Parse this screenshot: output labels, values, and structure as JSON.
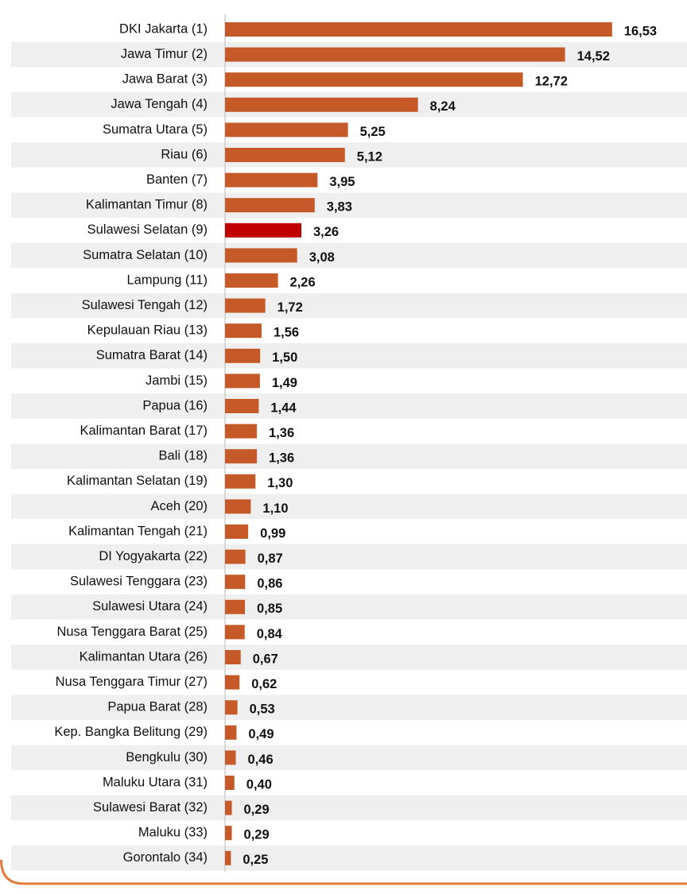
{
  "chart_data": {
    "type": "barh",
    "categories": [
      "DKI Jakarta (1)",
      "Jawa Timur (2)",
      "Jawa Barat (3)",
      "Jawa Tengah (4)",
      "Sumatra Utara (5)",
      "Riau (6)",
      "Banten (7)",
      "Kalimantan Timur (8)",
      "Sulawesi Selatan (9)",
      "Sumatra Selatan (10)",
      "Lampung (11)",
      "Sulawesi Tengah (12)",
      "Kepulauan Riau (13)",
      "Sumatra Barat (14)",
      "Jambi (15)",
      "Papua (16)",
      "Kalimantan Barat (17)",
      "Bali (18)",
      "Kalimantan Selatan (19)",
      "Aceh (20)",
      "Kalimantan Tengah (21)",
      "DI Yogyakarta (22)",
      "Sulawesi Tenggara (23)",
      "Sulawesi Utara (24)",
      "Nusa Tenggara Barat (25)",
      "Kalimantan Utara (26)",
      "Nusa Tenggara Timur (27)",
      "Papua Barat (28)",
      "Kep. Bangka Belitung (29)",
      "Bengkulu (30)",
      "Maluku Utara (31)",
      "Sulawesi Barat (32)",
      "Maluku (33)",
      "Gorontalo (34)"
    ],
    "values": [
      16.53,
      14.52,
      12.72,
      8.24,
      5.25,
      5.12,
      3.95,
      3.83,
      3.26,
      3.08,
      2.26,
      1.72,
      1.56,
      1.5,
      1.49,
      1.44,
      1.36,
      1.36,
      1.3,
      1.1,
      0.99,
      0.87,
      0.86,
      0.85,
      0.84,
      0.67,
      0.62,
      0.53,
      0.49,
      0.46,
      0.4,
      0.29,
      0.29,
      0.25
    ],
    "value_labels": [
      "16,53",
      "14,52",
      "12,72",
      "8,24",
      "5,25",
      "5,12",
      "3,95",
      "3,83",
      "3,26",
      "3,08",
      "2,26",
      "1,72",
      "1,56",
      "1,50",
      "1,49",
      "1,44",
      "1,36",
      "1,36",
      "1,30",
      "1,10",
      "0,99",
      "0,87",
      "0,86",
      "0,85",
      "0,84",
      "0,67",
      "0,62",
      "0,53",
      "0,49",
      "0,46",
      "0,40",
      "0,29",
      "0,29",
      "0,25"
    ],
    "colors": [
      "#c55a28",
      "#c55a28",
      "#c55a28",
      "#c55a28",
      "#c55a28",
      "#c55a28",
      "#c55a28",
      "#c55a28",
      "#c00000",
      "#c55a28",
      "#c55a28",
      "#c55a28",
      "#c55a28",
      "#c55a28",
      "#c55a28",
      "#c55a28",
      "#c55a28",
      "#c55a28",
      "#c55a28",
      "#c55a28",
      "#c55a28",
      "#c55a28",
      "#c55a28",
      "#c55a28",
      "#c55a28",
      "#c55a28",
      "#c55a28",
      "#c55a28",
      "#c55a28",
      "#c55a28",
      "#c55a28",
      "#c55a28",
      "#c55a28",
      "#c55a28"
    ]
  }
}
